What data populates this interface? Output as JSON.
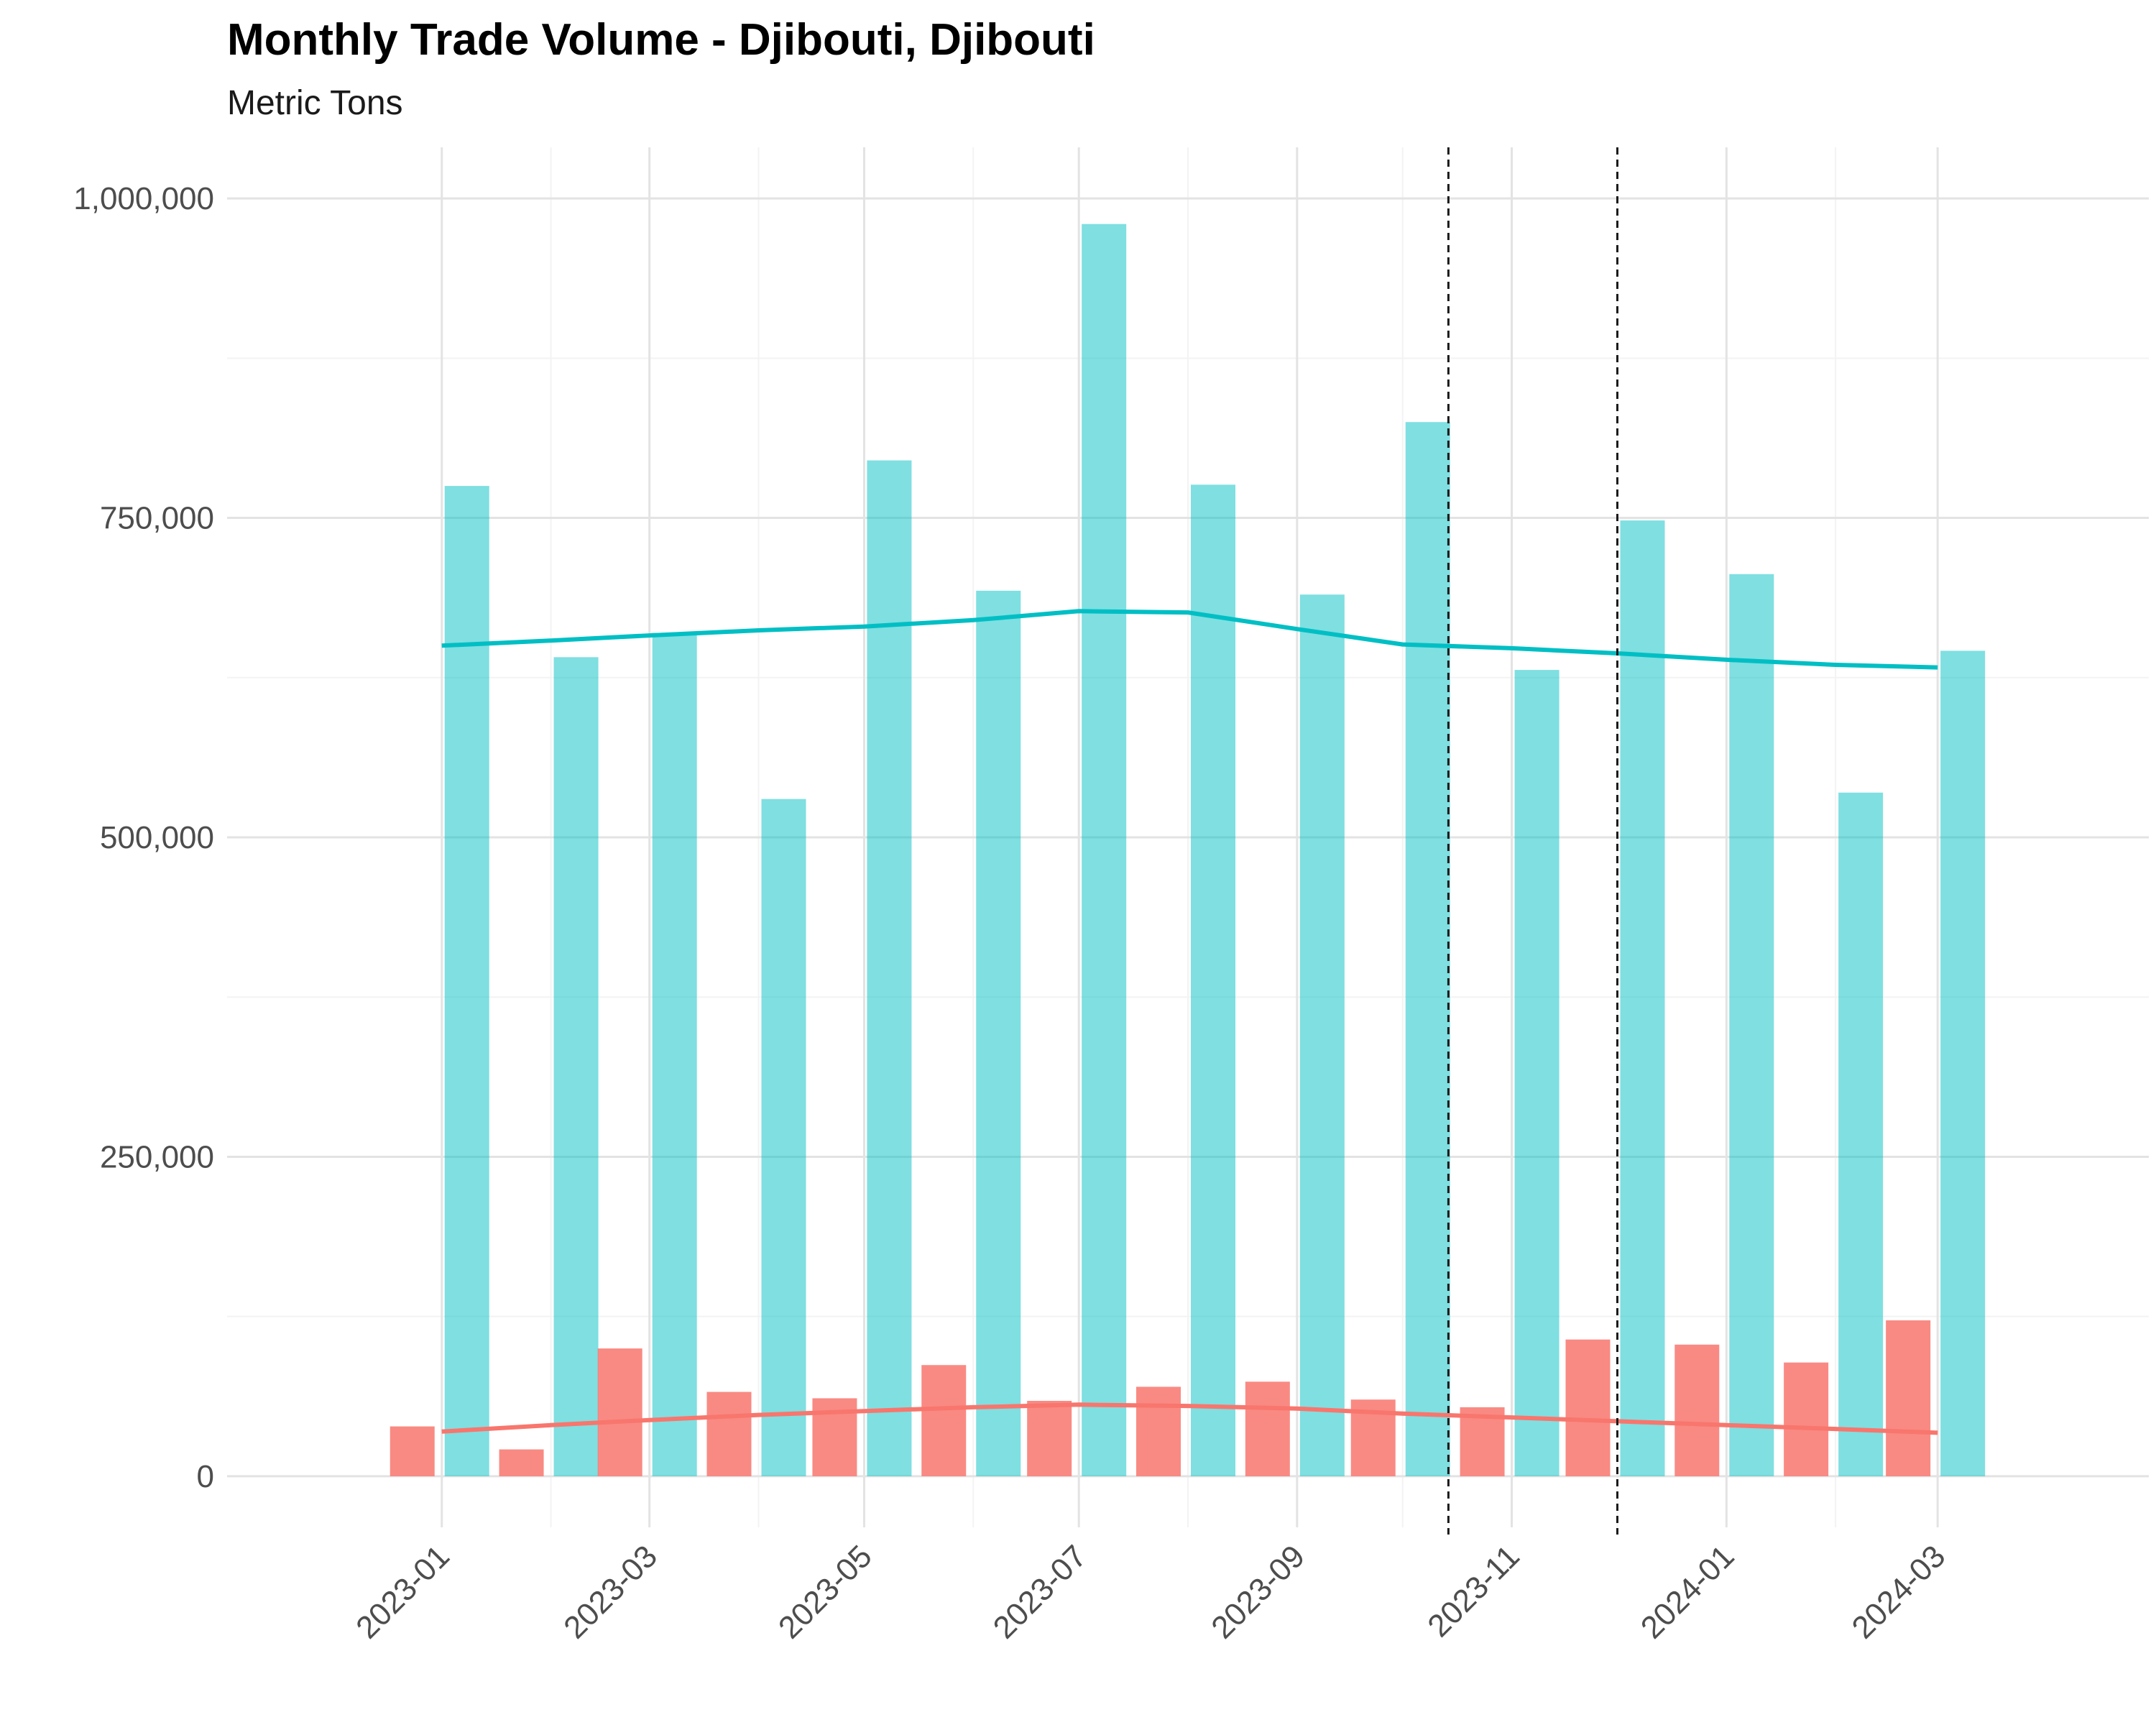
{
  "title": "Monthly Trade Volume - Djibouti, Djibouti",
  "subtitle": "Metric Tons",
  "chart_data": {
    "type": "bar",
    "title": "Monthly Trade Volume - Djibouti, Djibouti",
    "subtitle": "Metric Tons",
    "xlabel": "",
    "ylabel": "",
    "ylim": [
      -40000,
      1040000
    ],
    "grid": true,
    "legend": "none",
    "x_dates": [
      "2023-01",
      "2023-02",
      "2023-03",
      "2023-04",
      "2023-05",
      "2023-06",
      "2023-07",
      "2023-08",
      "2023-09",
      "2023-10",
      "2023-11",
      "2023-12",
      "2024-01",
      "2024-02",
      "2024-03"
    ],
    "x_ticks": [
      "2023-01",
      "2023-03",
      "2023-05",
      "2023-07",
      "2023-09",
      "2023-11",
      "2024-01",
      "2024-03"
    ],
    "y_ticks": [
      0,
      250000,
      500000,
      750000,
      1000000
    ],
    "y_tick_labels": [
      "0",
      "250,000",
      "500,000",
      "750,000",
      "1,000,000"
    ],
    "series": [
      {
        "kind": "bar",
        "color": "#F8766D",
        "values": [
          39000,
          21000,
          100000,
          66000,
          61000,
          87000,
          59000,
          70000,
          74000,
          60000,
          54000,
          107000,
          103000,
          89000,
          122000
        ]
      },
      {
        "kind": "bar",
        "color": "#00BFC4",
        "values": [
          775000,
          641000,
          660000,
          530000,
          795000,
          693000,
          980000,
          776000,
          690000,
          825000,
          631000,
          748000,
          706000,
          535000,
          646000
        ]
      },
      {
        "kind": "trend",
        "color": "#F8766D",
        "values": [
          35000,
          40000,
          44000,
          48000,
          51000,
          54000,
          56000,
          55000,
          53000,
          49000,
          46000,
          43000,
          40000,
          37000,
          34000
        ]
      },
      {
        "kind": "trend",
        "color": "#00BFC4",
        "values": [
          650000,
          654000,
          658000,
          662000,
          665000,
          670000,
          677000,
          676000,
          663000,
          651000,
          648000,
          644000,
          639000,
          635000,
          633000
        ]
      }
    ],
    "reference_lines": [
      "2023-10-14",
      "2023-12-01"
    ]
  }
}
